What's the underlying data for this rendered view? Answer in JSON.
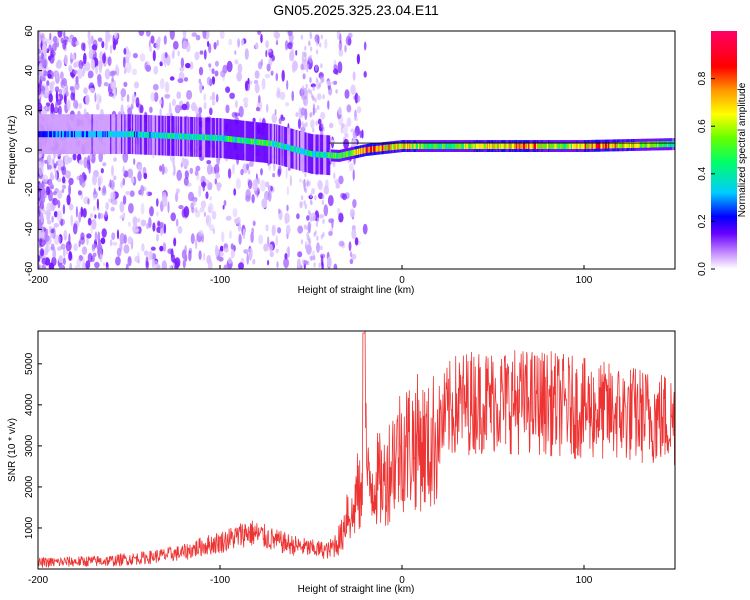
{
  "title": "GN05.2025.325.23.04.E11",
  "chart_data": [
    {
      "type": "heatmap",
      "xlabel": "Height of straight line (km)",
      "ylabel": "Frequency (Hz)",
      "xlim": [
        -200,
        150
      ],
      "ylim": [
        -60,
        60
      ],
      "xticks": [
        -200,
        -100,
        0,
        100
      ],
      "yticks": [
        60,
        40,
        20,
        0,
        -20,
        -40,
        -60
      ],
      "colorbar": {
        "label": "Normalized spectral amplitude",
        "range": [
          0.0,
          1.0
        ],
        "ticks": [
          0.0,
          0.2,
          0.4,
          0.6,
          0.8
        ],
        "tick_labels": [
          "0.0",
          "0.2",
          "0.4",
          "0.6",
          "0.8"
        ],
        "colors": [
          "#ffffff",
          "#cc99ff",
          "#6600ff",
          "#0000ff",
          "#00ccff",
          "#00ff66",
          "#66ff00",
          "#ffff00",
          "#ff9900",
          "#ff0000",
          "#ff0066"
        ]
      },
      "band_center_hz": [
        {
          "x": -200,
          "y": 8
        },
        {
          "x": -150,
          "y": 8
        },
        {
          "x": -100,
          "y": 6
        },
        {
          "x": -70,
          "y": 3
        },
        {
          "x": -50,
          "y": -2
        },
        {
          "x": -35,
          "y": -3
        },
        {
          "x": -20,
          "y": 0
        },
        {
          "x": 0,
          "y": 2
        },
        {
          "x": 50,
          "y": 2
        },
        {
          "x": 100,
          "y": 2
        },
        {
          "x": 150,
          "y": 3
        }
      ],
      "band_amplitude": [
        {
          "x": -200,
          "v": 0.35
        },
        {
          "x": -150,
          "v": 0.45
        },
        {
          "x": -110,
          "v": 0.5
        },
        {
          "x": -80,
          "v": 0.55
        },
        {
          "x": -50,
          "v": 0.45
        },
        {
          "x": -30,
          "v": 0.6
        },
        {
          "x": -20,
          "v": 0.9
        },
        {
          "x": 0,
          "v": 0.75
        },
        {
          "x": 20,
          "v": 0.55
        },
        {
          "x": 40,
          "v": 0.7
        },
        {
          "x": 70,
          "v": 0.85
        },
        {
          "x": 90,
          "v": 0.6
        },
        {
          "x": 105,
          "v": 0.9
        },
        {
          "x": 150,
          "v": 0.55
        }
      ]
    },
    {
      "type": "line",
      "xlabel": "Height of straight line (km)",
      "ylabel": "SNR (10 * v/v)",
      "xlim": [
        -200,
        150
      ],
      "ylim": [
        0,
        5800
      ],
      "xticks": [
        -200,
        -100,
        0,
        100
      ],
      "yticks": [
        1000,
        2000,
        3000,
        4000,
        5000
      ],
      "color": "#ee3333",
      "series": [
        {
          "name": "SNR",
          "points": [
            {
              "x": -200,
              "y": 150
            },
            {
              "x": -180,
              "y": 180
            },
            {
              "x": -160,
              "y": 200
            },
            {
              "x": -140,
              "y": 280
            },
            {
              "x": -120,
              "y": 400
            },
            {
              "x": -110,
              "y": 550
            },
            {
              "x": -100,
              "y": 650
            },
            {
              "x": -90,
              "y": 800
            },
            {
              "x": -85,
              "y": 900
            },
            {
              "x": -80,
              "y": 850
            },
            {
              "x": -70,
              "y": 700
            },
            {
              "x": -60,
              "y": 580
            },
            {
              "x": -50,
              "y": 500
            },
            {
              "x": -40,
              "y": 450
            },
            {
              "x": -33,
              "y": 800
            },
            {
              "x": -30,
              "y": 1500
            },
            {
              "x": -27,
              "y": 1200
            },
            {
              "x": -25,
              "y": 1900
            },
            {
              "x": -22,
              "y": 1600
            },
            {
              "x": -21,
              "y": 5600
            },
            {
              "x": -19,
              "y": 2000
            },
            {
              "x": -15,
              "y": 2200
            },
            {
              "x": -10,
              "y": 2100
            },
            {
              "x": -5,
              "y": 2700
            },
            {
              "x": 0,
              "y": 3000
            },
            {
              "x": 10,
              "y": 3100
            },
            {
              "x": 15,
              "y": 2900
            },
            {
              "x": 20,
              "y": 3400
            },
            {
              "x": 25,
              "y": 3800
            },
            {
              "x": 30,
              "y": 4000
            },
            {
              "x": 40,
              "y": 4100
            },
            {
              "x": 60,
              "y": 4100
            },
            {
              "x": 80,
              "y": 4050
            },
            {
              "x": 100,
              "y": 3900
            },
            {
              "x": 120,
              "y": 3800
            },
            {
              "x": 140,
              "y": 3700
            },
            {
              "x": 150,
              "y": 3650
            }
          ]
        }
      ]
    }
  ]
}
